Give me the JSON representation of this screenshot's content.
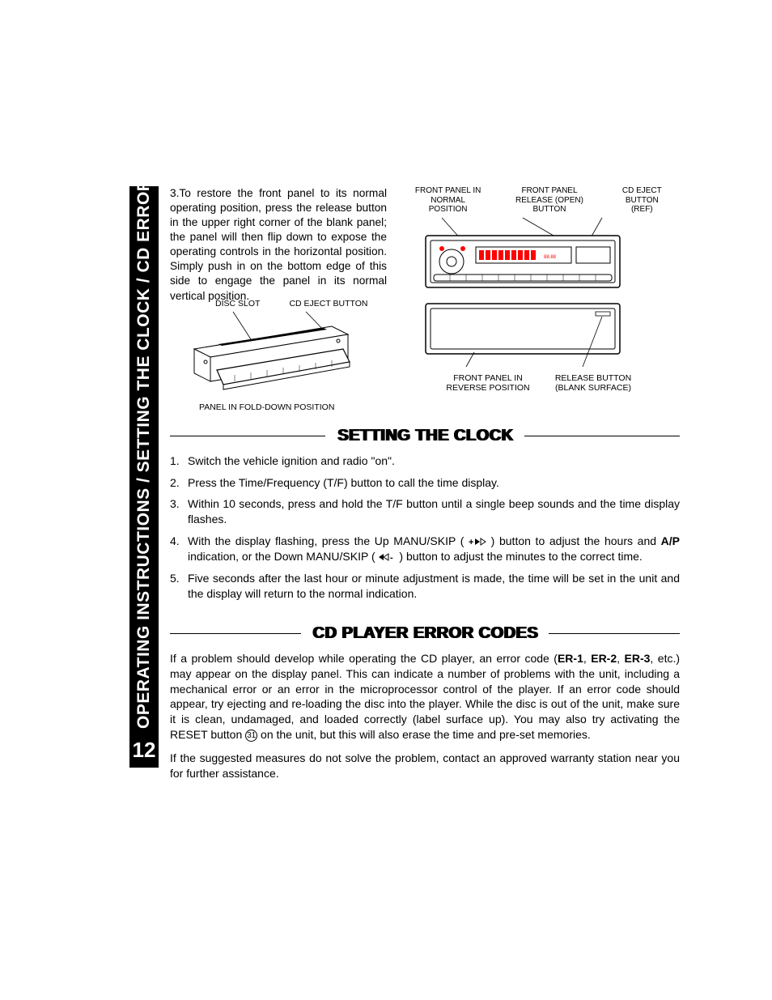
{
  "page": {
    "number": "12",
    "sidebar_title": "OPERATING INSTRUCTIONS / SETTING THE CLOCK / CD ERROR CODES",
    "background_color": "#ffffff",
    "text_color": "#000000",
    "sidebar_bg": "#000000",
    "sidebar_fg": "#ffffff"
  },
  "intro": {
    "number": "3.",
    "text": "To restore the front panel to its normal operating position, press the release button in the upper right corner of the blank panel; the panel will then flip down to expose the operating controls in the horizontal position. Simply push in on the bottom edge of this side to engage the panel in its normal vertical position."
  },
  "diagram_right": {
    "top_labels": [
      "FRONT PANEL IN NORMAL POSITION",
      "FRONT PANEL RELEASE (OPEN) BUTTON",
      "CD EJECT BUTTON (REF)"
    ],
    "bottom_labels": [
      "FRONT PANEL IN REVERSE POSITION",
      "RELEASE BUTTON (BLANK SURFACE)"
    ],
    "accent_color": "#ff0000",
    "panel_stroke": "#000000"
  },
  "diagram_left": {
    "top_labels": [
      "DISC SLOT",
      "CD EJECT BUTTON"
    ],
    "caption": "PANEL IN FOLD-DOWN POSITION"
  },
  "sections": {
    "clock": {
      "title": "SETTING THE CLOCK",
      "steps": [
        {
          "n": "1.",
          "t": "Switch the vehicle ignition and radio \"on\"."
        },
        {
          "n": "2.",
          "t": "Press the Time/Frequency (T/F) button to call the time display."
        },
        {
          "n": "3.",
          "t": "Within 10 seconds, press and hold the T/F button until a single beep sounds and the time display flashes."
        },
        {
          "n": "4.",
          "t_html": "With the display flashing, press the Up MANU/SKIP ( <svg class='icon-inline' width='22' height='10'><text x='0' y='9' font-size='11' font-weight='bold'>+</text><polygon points='8,1 8,9 14,5' fill='#000'/><polygon points='15,1 15,9 21,5' fill='none' stroke='#000'/></svg> ) button to adjust the hours and <b>A/P</b> indication, or the Down MANU/SKIP ( <svg class='icon-inline' width='22' height='10'><polygon points='6,5 12,1 12,9' fill='none' stroke='#000'/><polygon points='0,5 6,1 6,9' fill='#000'/><text x='14' y='9' font-size='11' font-weight='bold'>-</text></svg> ) button to adjust the minutes to the correct time."
        },
        {
          "n": "5.",
          "t": "Five seconds after the last hour or minute adjustment is made, the time will be set in the unit and the display will return to the normal indication."
        }
      ]
    },
    "errors": {
      "title": "CD PLAYER ERROR CODES",
      "para1_html": "If a problem should develop while operating the CD player, an error code (<b>ER-1</b>, <b>ER-2</b>, <b>ER-3</b>, etc.) may appear on the display panel.  This can indicate a number of problems with the unit, including a mechanical error or an error in the microprocessor control of the player.  If an error code should appear, try ejecting and re-loading the disc into the player. While the disc is out of the unit, make sure it is clean, undamaged, and loaded correctly (label surface up).  You may also try activating the RESET button <span class='circled'>31</span> on the unit, but this will also erase the time and pre-set memories.",
      "para2": "If the suggested measures do not solve the problem, contact an approved warranty station near you for further assistance."
    }
  }
}
